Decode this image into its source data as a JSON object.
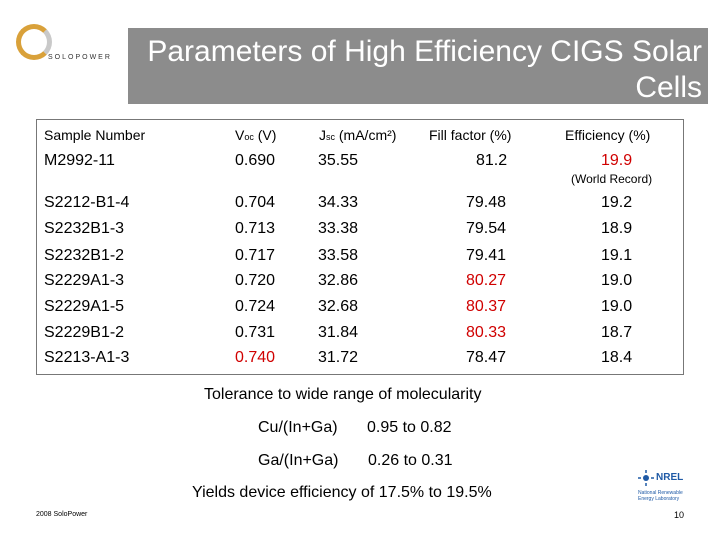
{
  "title": "Parameters of High Efficiency CIGS Solar Cells",
  "logo_text": "SOLOPOWER",
  "table": {
    "headers": {
      "sample": "Sample Number",
      "voc_main": "V",
      "voc_sub": "oc",
      "voc_unit": " (V)",
      "jsc_main": "J",
      "jsc_sub": "sc",
      "jsc_unit": " (mA/cm²)",
      "ff": "Fill factor (%)",
      "eff": "Efficiency (%)"
    },
    "rows": [
      {
        "sample": "M2992-11",
        "voc": "0.690",
        "jsc": "35.55",
        "ff": "81.2",
        "eff": "19.9"
      },
      {
        "sample": "S2212-B1-4",
        "voc": "0.704",
        "jsc": "34.33",
        "ff": "79.48",
        "eff": "19.2"
      },
      {
        "sample": "S2232B1-3",
        "voc": "0.713",
        "jsc": "33.38",
        "ff": "79.54",
        "eff": "18.9"
      },
      {
        "sample": "S2232B1-2",
        "voc": "0.717",
        "jsc": "33.58",
        "ff": "79.41",
        "eff": "19.1"
      },
      {
        "sample": "S2229A1-3",
        "voc": "0.720",
        "jsc": "32.86",
        "ff": "80.27",
        "eff": "19.0"
      },
      {
        "sample": "S2229A1-5",
        "voc": "0.724",
        "jsc": "32.68",
        "ff": "80.37",
        "eff": "19.0"
      },
      {
        "sample": "S2229B1-2",
        "voc": "0.731",
        "jsc": "31.84",
        "ff": "80.33",
        "eff": "18.7"
      },
      {
        "sample": "S2213-A1-3",
        "voc": "0.740",
        "jsc": "31.72",
        "ff": "78.47",
        "eff": "18.4"
      }
    ],
    "world_record_label": "(World Record)"
  },
  "notes": {
    "tolerance": "Tolerance to wide range of molecularity",
    "cu_label": "Cu/(In+Ga)",
    "cu_range": "0.95 to 0.82",
    "ga_label": "Ga/(In+Ga)",
    "ga_range": "0.26 to 0.31",
    "yields": "Yields device efficiency of 17.5% to 19.5%"
  },
  "footer": {
    "copyright": "2008 SoloPower",
    "page_number": "10",
    "nrel_name": "NREL",
    "nrel_full": "National Renewable Energy Laboratory"
  },
  "colors": {
    "title_bg": "#8c8c8c",
    "highlight_red": "#d00000",
    "nrel_blue": "#1f5aa6",
    "logo_gold": "#d9a13a"
  }
}
